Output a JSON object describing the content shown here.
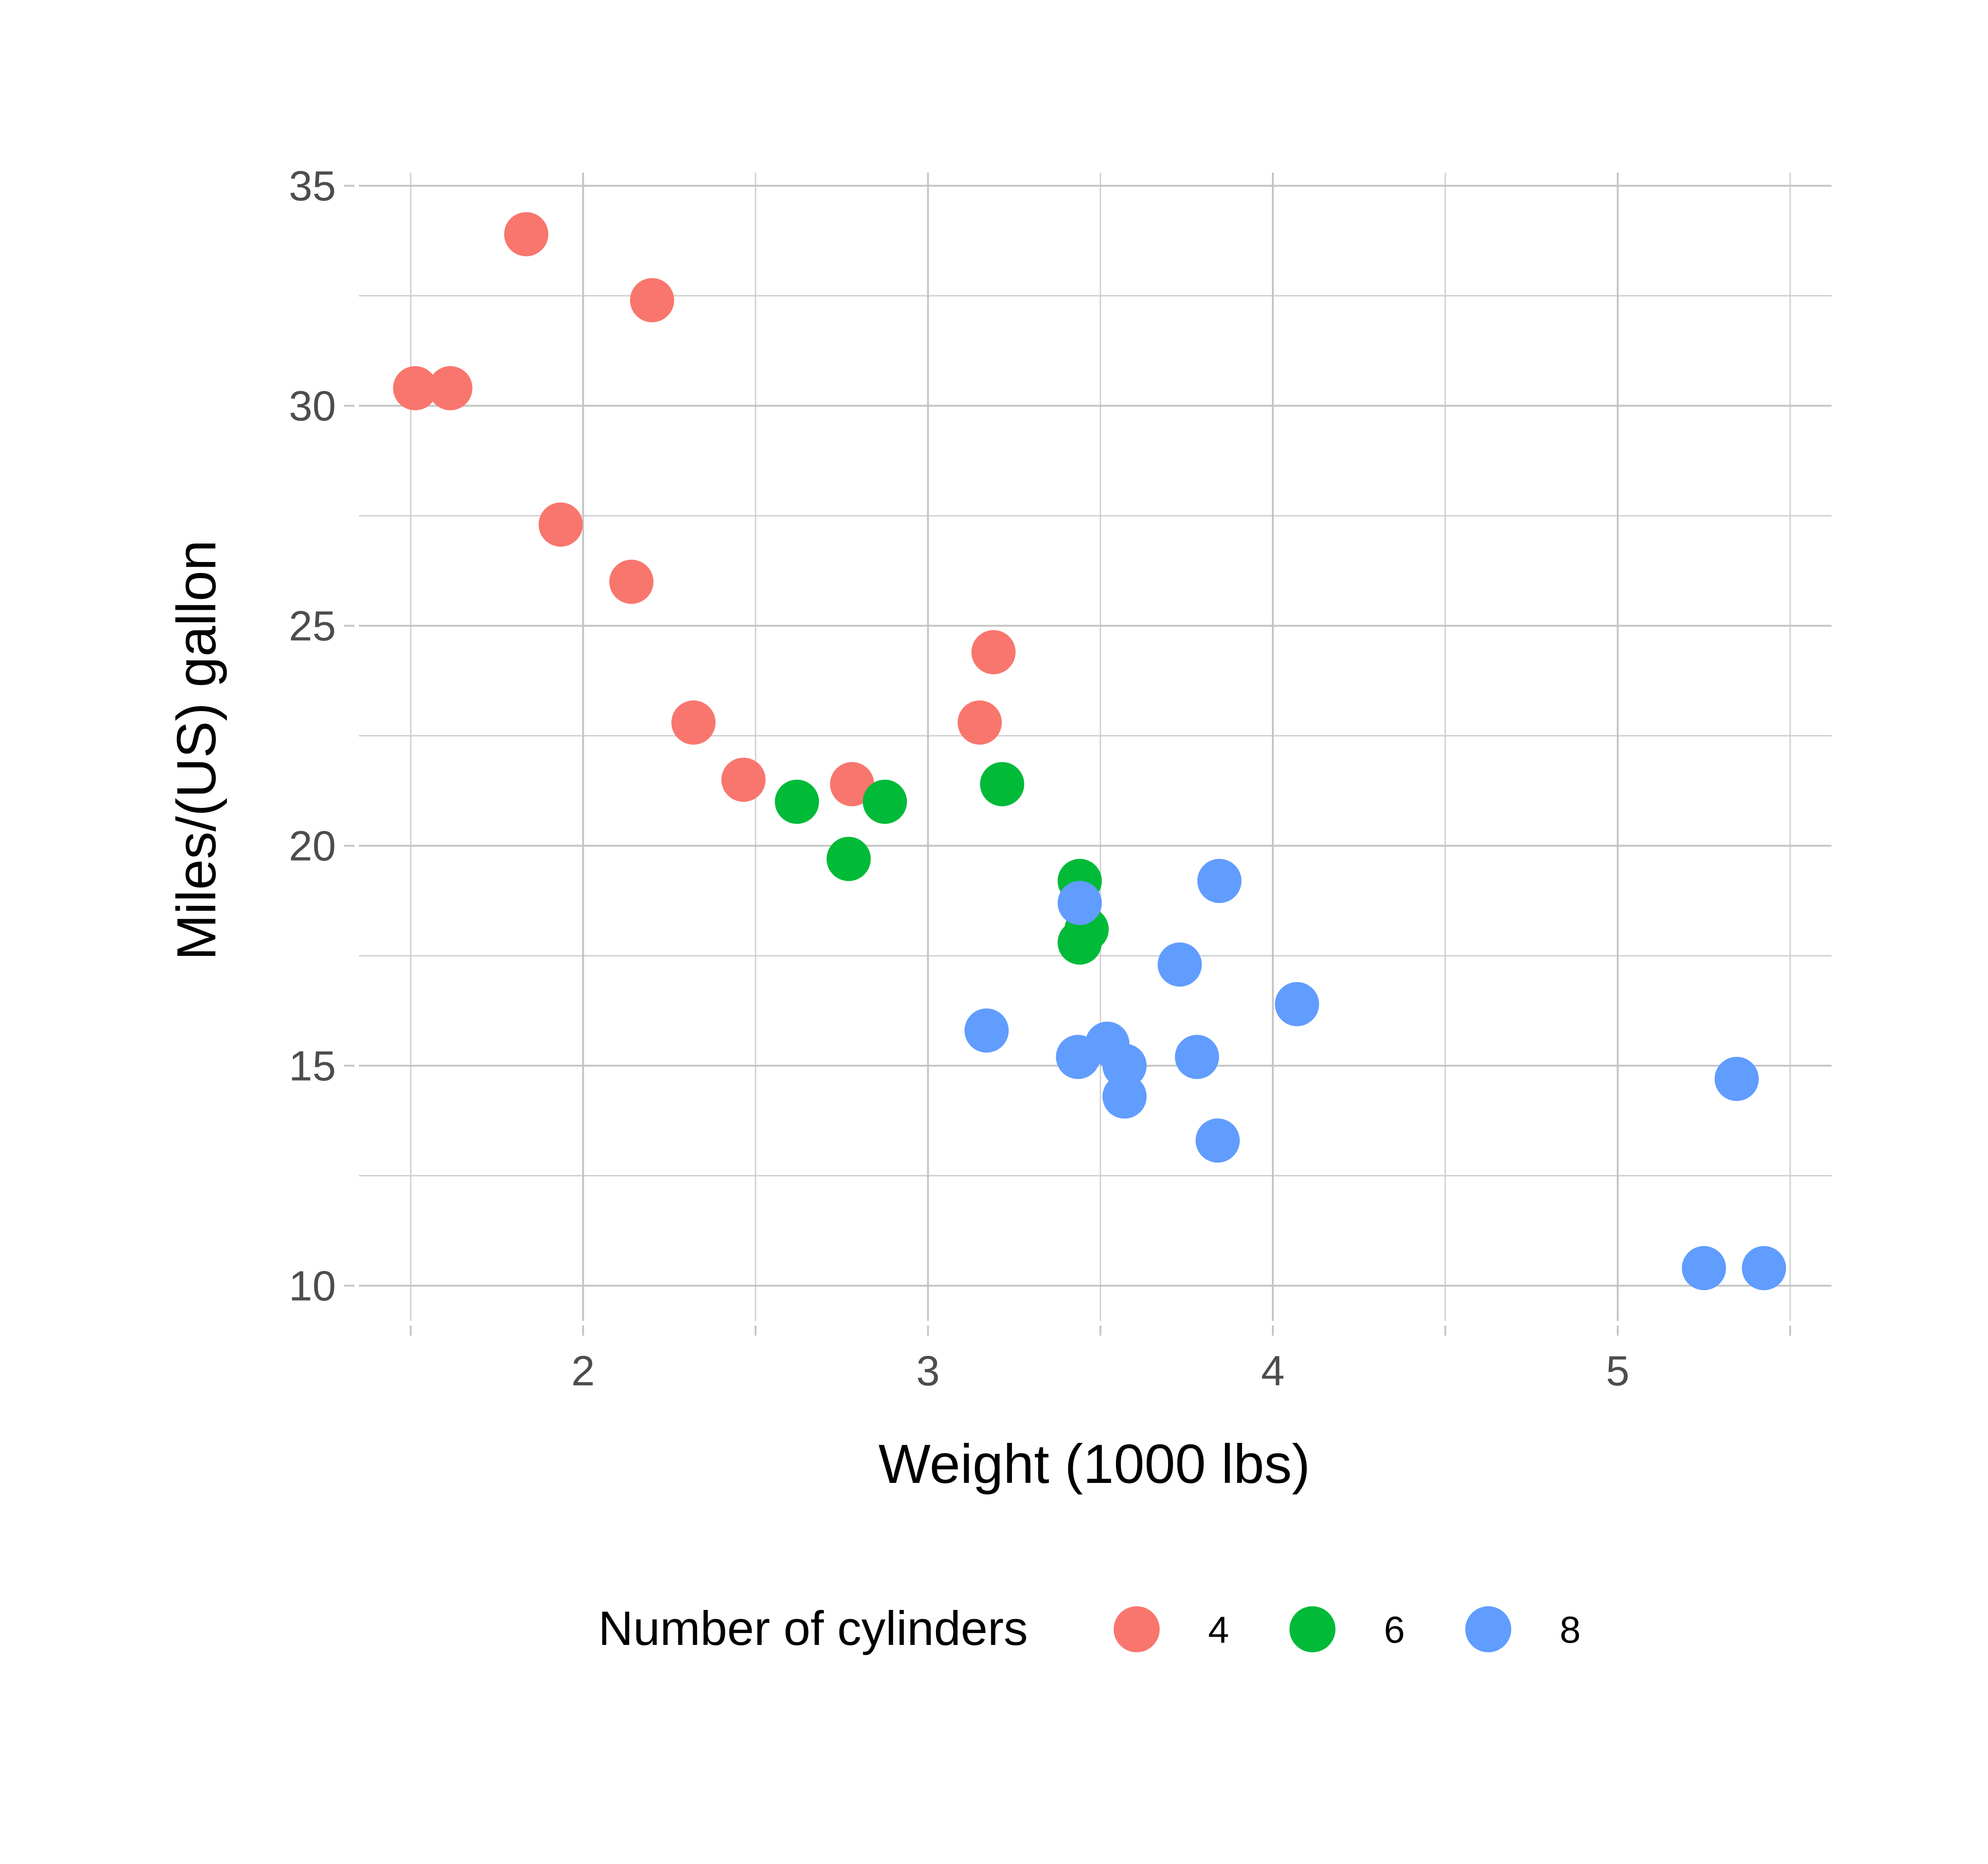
{
  "chart_data": {
    "type": "scatter",
    "xlabel": "Weight (1000 lbs)",
    "ylabel": "Miles/(US) gallon",
    "xlim": [
      1.35,
      5.62
    ],
    "ylim": [
      9.2,
      35.3
    ],
    "x_ticks": [
      2,
      3,
      4,
      5
    ],
    "x_minor_ticks": [
      1.5,
      2.5,
      3.5,
      4.5,
      5.5
    ],
    "y_ticks": [
      10,
      15,
      20,
      25,
      30,
      35
    ],
    "y_minor_ticks": [
      12.5,
      17.5,
      22.5,
      27.5,
      32.5
    ],
    "grid": true,
    "legend": {
      "title": "Number of cylinders",
      "position": "bottom"
    },
    "series": [
      {
        "name": "4",
        "color": "#F8766D",
        "points": [
          {
            "x": 2.32,
            "y": 22.8
          },
          {
            "x": 3.19,
            "y": 24.4
          },
          {
            "x": 3.15,
            "y": 22.8
          },
          {
            "x": 2.2,
            "y": 32.4
          },
          {
            "x": 1.615,
            "y": 30.4
          },
          {
            "x": 1.835,
            "y": 33.9
          },
          {
            "x": 2.465,
            "y": 21.5
          },
          {
            "x": 1.935,
            "y": 27.3
          },
          {
            "x": 2.14,
            "y": 26.0
          },
          {
            "x": 1.513,
            "y": 30.4
          },
          {
            "x": 2.78,
            "y": 21.4
          }
        ]
      },
      {
        "name": "6",
        "color": "#00BA38",
        "points": [
          {
            "x": 2.62,
            "y": 21.0
          },
          {
            "x": 2.875,
            "y": 21.0
          },
          {
            "x": 3.215,
            "y": 21.4
          },
          {
            "x": 3.46,
            "y": 18.1
          },
          {
            "x": 3.44,
            "y": 19.2
          },
          {
            "x": 3.44,
            "y": 17.8
          },
          {
            "x": 2.77,
            "y": 19.7
          }
        ]
      },
      {
        "name": "8",
        "color": "#619CFF",
        "points": [
          {
            "x": 3.44,
            "y": 18.7
          },
          {
            "x": 3.57,
            "y": 14.3
          },
          {
            "x": 4.07,
            "y": 16.4
          },
          {
            "x": 3.73,
            "y": 17.3
          },
          {
            "x": 3.78,
            "y": 15.2
          },
          {
            "x": 5.25,
            "y": 10.4
          },
          {
            "x": 5.424,
            "y": 10.4
          },
          {
            "x": 5.345,
            "y": 14.7
          },
          {
            "x": 3.52,
            "y": 15.5
          },
          {
            "x": 3.435,
            "y": 15.2
          },
          {
            "x": 3.84,
            "y": 13.3
          },
          {
            "x": 3.845,
            "y": 19.2
          },
          {
            "x": 3.17,
            "y": 15.8
          },
          {
            "x": 3.57,
            "y": 15.0
          }
        ]
      }
    ]
  }
}
